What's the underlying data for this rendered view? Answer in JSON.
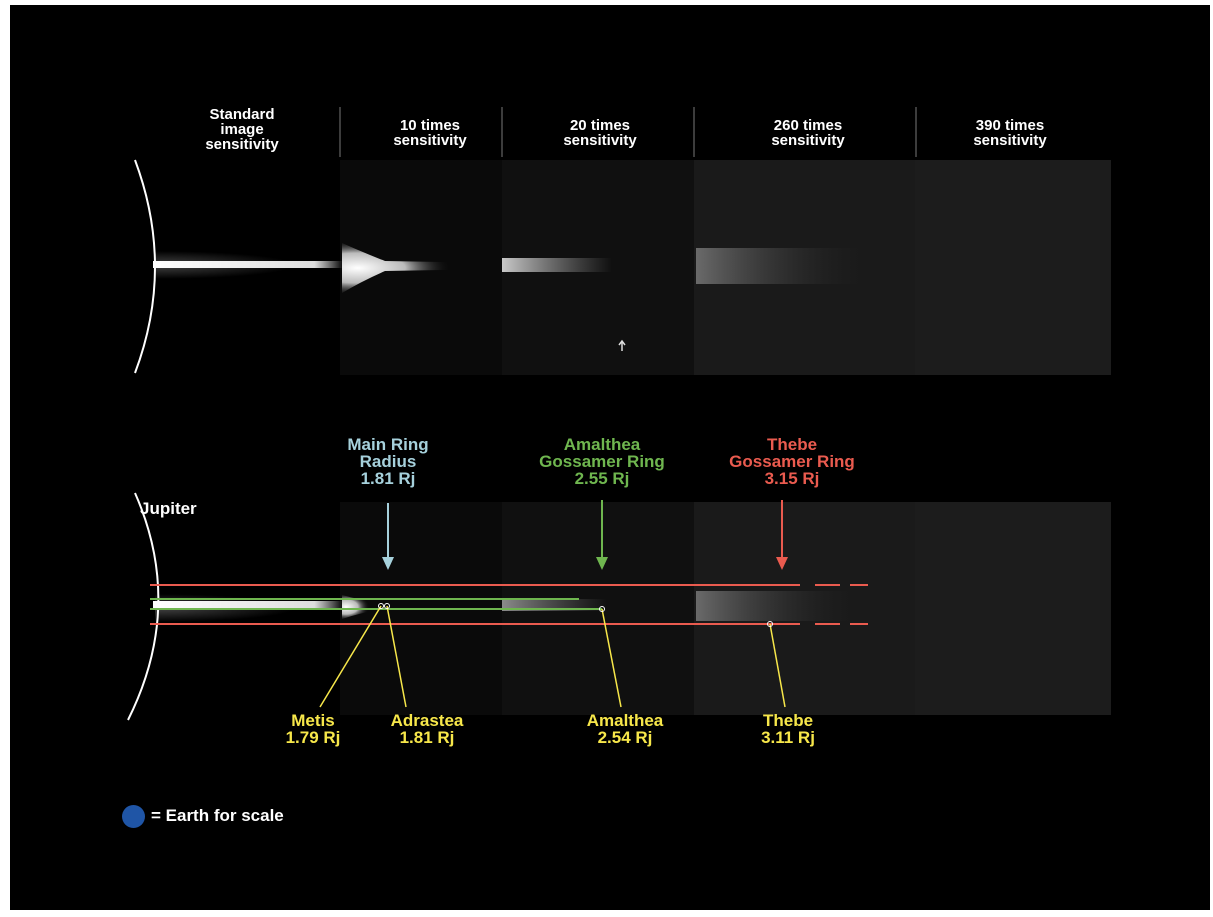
{
  "colors": {
    "background": "#000000",
    "main_ring": "#a6d1dc",
    "amalthea": "#6fb64f",
    "thebe": "#ea5b4f",
    "moons": "#f7e74a",
    "earth": "#1f55a6"
  },
  "headers": [
    "Standard\nimage\nsensitivity",
    "10 times\nsensitivity",
    "20 times\nsensitivity",
    "260 times\nsensitivity",
    "390 times\nsensitivity"
  ],
  "rings": {
    "main": "Main Ring\nRadius\n1.81 Rj",
    "amalthea": "Amalthea\nGossamer Ring\n2.55 Rj",
    "thebe": "Thebe\nGossamer Ring\n3.15 Rj"
  },
  "planet": "Jupiter",
  "moons": {
    "metis": "Metis\n1.79 Rj",
    "adrastea": "Adrastea\n1.81 Rj",
    "amalthea": "Amalthea\n2.54 Rj",
    "thebe": "Thebe\n3.11 Rj"
  },
  "legend": "= Earth for scale"
}
